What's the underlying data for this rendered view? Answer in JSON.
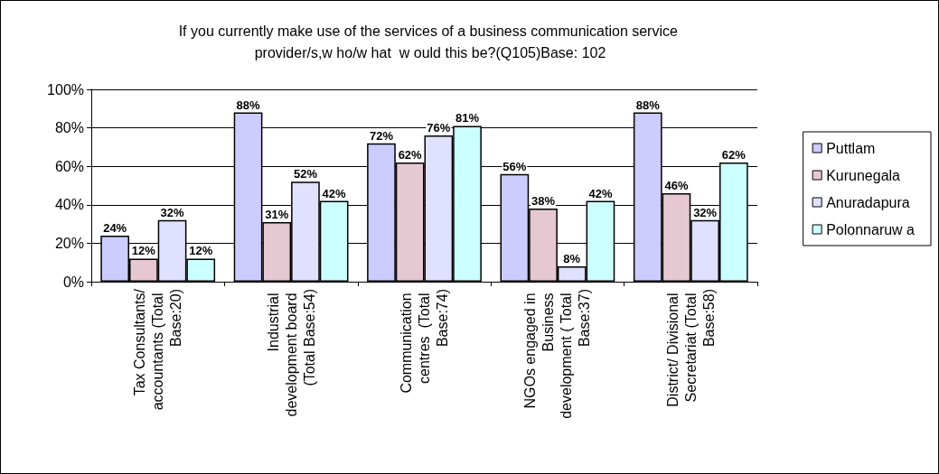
{
  "chart_data": {
    "type": "bar",
    "title": "If you currently make use of the services of a business communication service provider/s,w ho/w hat  w ould this be?(Q105)Base: 102",
    "categories": [
      "Tax Consultants/accountants (Total Base:20)",
      "Industrial development board (Total Base:54)",
      "Communication centres  (Total Base:74)",
      "NGOs engaged in Business development ( Total Base:37)",
      "District/ Divisional Secretariat (Total Base:58)"
    ],
    "series": [
      {
        "name": "Puttlam",
        "color": "#ccccff",
        "values": [
          24,
          88,
          72,
          56,
          88
        ],
        "value_labels": [
          "24%",
          "88%",
          "72%",
          "56%",
          "88%"
        ]
      },
      {
        "name": "Kurunegala",
        "color": "#e6c8d2",
        "values": [
          12,
          31,
          62,
          38,
          46
        ],
        "value_labels": [
          "12%",
          "31%",
          "62%",
          "38%",
          "46%"
        ]
      },
      {
        "name": "Anuradapura",
        "color": "#e0e0ff",
        "values": [
          32,
          52,
          76,
          8,
          32
        ],
        "value_labels": [
          "32%",
          "52%",
          "76%",
          "8%",
          "32%"
        ]
      },
      {
        "name": "Polonnaruw a",
        "color": "#ccffff",
        "values": [
          12,
          42,
          81,
          42,
          62
        ],
        "value_labels": [
          "12%",
          "42%",
          "81%",
          "42%",
          "62%"
        ]
      }
    ],
    "ylim": [
      0,
      100
    ],
    "yticks": [
      {
        "value": 0,
        "label": "0%"
      },
      {
        "value": 20,
        "label": "20%"
      },
      {
        "value": 40,
        "label": "40%"
      },
      {
        "value": 60,
        "label": "60%"
      },
      {
        "value": 80,
        "label": "80%"
      },
      {
        "value": 100,
        "label": "100%"
      }
    ],
    "grid": "y",
    "legend": "right"
  }
}
